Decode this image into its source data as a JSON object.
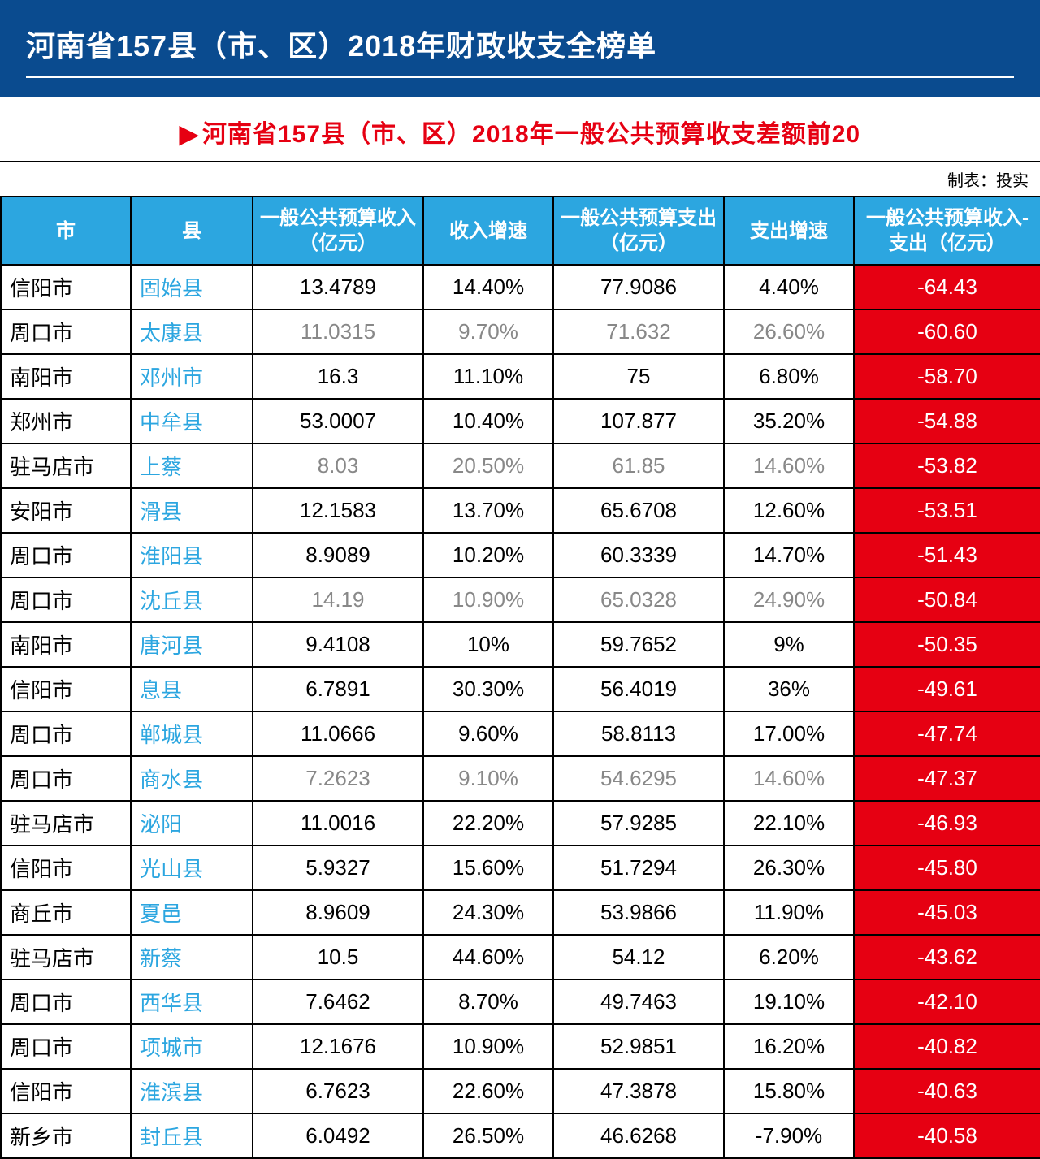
{
  "header": {
    "title": "河南省157县（市、区）2018年财政收支全榜单"
  },
  "subtitle": {
    "marker": "▶",
    "text": "河南省157县（市、区）2018年一般公共预算收支差额前20"
  },
  "credit": "制表：投实",
  "columns": {
    "city": "市",
    "county": "县",
    "revenue": "一般公共预算收入（亿元）",
    "revenue_growth": "收入增速",
    "expense": "一般公共预算支出（亿元）",
    "expense_growth": "支出增速",
    "diff": "一般公共预算收入-支出（亿元）"
  },
  "rows": [
    {
      "city": "信阳市",
      "county": "固始县",
      "rev": "13.4789",
      "revg": "14.40%",
      "exp": "77.9086",
      "expg": "4.40%",
      "diff": "-64.43",
      "shade": false
    },
    {
      "city": "周口市",
      "county": "太康县",
      "rev": "11.0315",
      "revg": "9.70%",
      "exp": "71.632",
      "expg": "26.60%",
      "diff": "-60.60",
      "shade": true
    },
    {
      "city": "南阳市",
      "county": "邓州市",
      "rev": "16.3",
      "revg": "11.10%",
      "exp": "75",
      "expg": "6.80%",
      "diff": "-58.70",
      "shade": false
    },
    {
      "city": "郑州市",
      "county": "中牟县",
      "rev": "53.0007",
      "revg": "10.40%",
      "exp": "107.877",
      "expg": "35.20%",
      "diff": "-54.88",
      "shade": false
    },
    {
      "city": "驻马店市",
      "county": "上蔡",
      "rev": "8.03",
      "revg": "20.50%",
      "exp": "61.85",
      "expg": "14.60%",
      "diff": "-53.82",
      "shade": true
    },
    {
      "city": "安阳市",
      "county": "滑县",
      "rev": "12.1583",
      "revg": "13.70%",
      "exp": "65.6708",
      "expg": "12.60%",
      "diff": "-53.51",
      "shade": false
    },
    {
      "city": "周口市",
      "county": "淮阳县",
      "rev": "8.9089",
      "revg": "10.20%",
      "exp": "60.3339",
      "expg": "14.70%",
      "diff": "-51.43",
      "shade": false
    },
    {
      "city": "周口市",
      "county": "沈丘县",
      "rev": "14.19",
      "revg": "10.90%",
      "exp": "65.0328",
      "expg": "24.90%",
      "diff": "-50.84",
      "shade": true
    },
    {
      "city": "南阳市",
      "county": "唐河县",
      "rev": "9.4108",
      "revg": "10%",
      "exp": "59.7652",
      "expg": "9%",
      "diff": "-50.35",
      "shade": false
    },
    {
      "city": "信阳市",
      "county": "息县",
      "rev": "6.7891",
      "revg": "30.30%",
      "exp": "56.4019",
      "expg": "36%",
      "diff": "-49.61",
      "shade": false
    },
    {
      "city": "周口市",
      "county": "郸城县",
      "rev": "11.0666",
      "revg": "9.60%",
      "exp": "58.8113",
      "expg": "17.00%",
      "diff": "-47.74",
      "shade": false
    },
    {
      "city": "周口市",
      "county": "商水县",
      "rev": "7.2623",
      "revg": "9.10%",
      "exp": "54.6295",
      "expg": "14.60%",
      "diff": "-47.37",
      "shade": true
    },
    {
      "city": "驻马店市",
      "county": "泌阳",
      "rev": "11.0016",
      "revg": "22.20%",
      "exp": "57.9285",
      "expg": "22.10%",
      "diff": "-46.93",
      "shade": false
    },
    {
      "city": "信阳市",
      "county": "光山县",
      "rev": "5.9327",
      "revg": "15.60%",
      "exp": "51.7294",
      "expg": "26.30%",
      "diff": "-45.80",
      "shade": false
    },
    {
      "city": "商丘市",
      "county": "夏邑",
      "rev": "8.9609",
      "revg": "24.30%",
      "exp": "53.9866",
      "expg": "11.90%",
      "diff": "-45.03",
      "shade": false
    },
    {
      "city": "驻马店市",
      "county": "新蔡",
      "rev": "10.5",
      "revg": "44.60%",
      "exp": "54.12",
      "expg": "6.20%",
      "diff": "-43.62",
      "shade": false
    },
    {
      "city": "周口市",
      "county": "西华县",
      "rev": "7.6462",
      "revg": "8.70%",
      "exp": "49.7463",
      "expg": "19.10%",
      "diff": "-42.10",
      "shade": false
    },
    {
      "city": "周口市",
      "county": "项城市",
      "rev": "12.1676",
      "revg": "10.90%",
      "exp": "52.9851",
      "expg": "16.20%",
      "diff": "-40.82",
      "shade": false
    },
    {
      "city": "信阳市",
      "county": "淮滨县",
      "rev": "6.7623",
      "revg": "22.60%",
      "exp": "47.3878",
      "expg": "15.80%",
      "diff": "-40.63",
      "shade": false
    },
    {
      "city": "新乡市",
      "county": "封丘县",
      "rev": "6.0492",
      "revg": "26.50%",
      "exp": "46.6268",
      "expg": "-7.90%",
      "diff": "-40.58",
      "shade": false
    }
  ],
  "style": {
    "header_bg": "#0a4b8f",
    "header_text": "#ffffff",
    "subtitle_color": "#e60012",
    "th_bg": "#2ca6e0",
    "th_text": "#ffffff",
    "county_text": "#2ca6e0",
    "diff_bg": "#e60012",
    "diff_text": "#ffffff",
    "border_color": "#000000",
    "shade_text": "#888888",
    "font_family": "Microsoft YaHei",
    "title_fontsize": 36,
    "subtitle_fontsize": 30,
    "th_fontsize": 24,
    "td_fontsize": 26
  }
}
